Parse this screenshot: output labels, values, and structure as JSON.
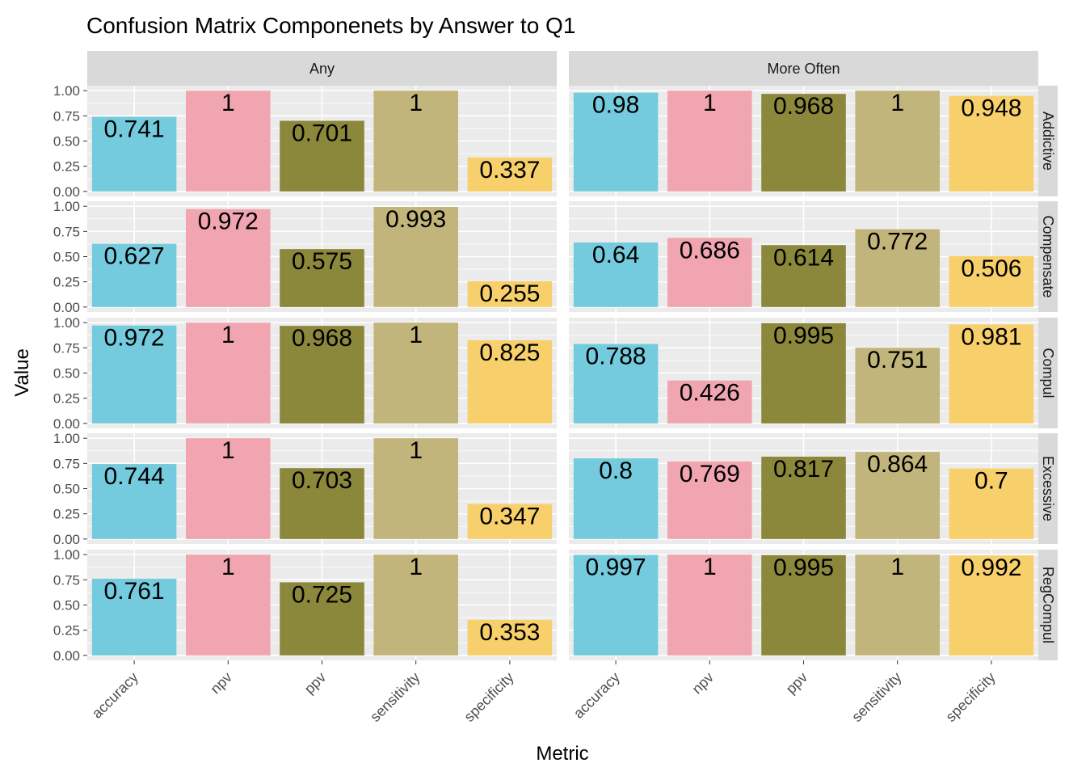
{
  "chart_data": {
    "type": "bar",
    "title": "Confusion Matrix Componenets by Answer to Q1",
    "xlabel": "Metric",
    "ylabel": "Value",
    "ylim": [
      0,
      1
    ],
    "y_ticks": [
      "0.00",
      "0.25",
      "0.50",
      "0.75",
      "1.00"
    ],
    "y_tick_values": [
      0,
      0.25,
      0.5,
      0.75,
      1
    ],
    "categories": [
      "accuracy",
      "npv",
      "ppv",
      "sensitivity",
      "specificity"
    ],
    "category_colors": {
      "accuracy": "#74CBDD",
      "npv": "#F0A5B0",
      "ppv": "#8B873B",
      "sensitivity": "#C2B57B",
      "specificity": "#F7D06B"
    },
    "columns": [
      "Any",
      "More Often"
    ],
    "rows": [
      "Addictive",
      "Compensate",
      "Compul",
      "Excessive",
      "RegCompul"
    ],
    "panels": [
      {
        "row": "Addictive",
        "column": "Any",
        "values": [
          0.741,
          1,
          0.701,
          1,
          0.337
        ],
        "labels": [
          "0.741",
          "1",
          "0.701",
          "1",
          "0.337"
        ]
      },
      {
        "row": "Addictive",
        "column": "More Often",
        "values": [
          0.98,
          1,
          0.968,
          1,
          0.948
        ],
        "labels": [
          "0.98",
          "1",
          "0.968",
          "1",
          "0.948"
        ]
      },
      {
        "row": "Compensate",
        "column": "Any",
        "values": [
          0.627,
          0.972,
          0.575,
          0.993,
          0.255
        ],
        "labels": [
          "0.627",
          "0.972",
          "0.575",
          "0.993",
          "0.255"
        ]
      },
      {
        "row": "Compensate",
        "column": "More Often",
        "values": [
          0.64,
          0.686,
          0.614,
          0.772,
          0.506
        ],
        "labels": [
          "0.64",
          "0.686",
          "0.614",
          "0.772",
          "0.506"
        ]
      },
      {
        "row": "Compul",
        "column": "Any",
        "values": [
          0.972,
          1,
          0.968,
          1,
          0.825
        ],
        "labels": [
          "0.972",
          "1",
          "0.968",
          "1",
          "0.825"
        ]
      },
      {
        "row": "Compul",
        "column": "More Often",
        "values": [
          0.788,
          0.426,
          0.995,
          0.751,
          0.981
        ],
        "labels": [
          "0.788",
          "0.426",
          "0.995",
          "0.751",
          "0.981"
        ]
      },
      {
        "row": "Excessive",
        "column": "Any",
        "values": [
          0.744,
          1,
          0.703,
          1,
          0.347
        ],
        "labels": [
          "0.744",
          "1",
          "0.703",
          "1",
          "0.347"
        ]
      },
      {
        "row": "Excessive",
        "column": "More Often",
        "values": [
          0.8,
          0.769,
          0.817,
          0.864,
          0.7
        ],
        "labels": [
          "0.8",
          "0.769",
          "0.817",
          "0.864",
          "0.7"
        ]
      },
      {
        "row": "RegCompul",
        "column": "Any",
        "values": [
          0.761,
          1,
          0.725,
          1,
          0.353
        ],
        "labels": [
          "0.761",
          "1",
          "0.725",
          "1",
          "0.353"
        ]
      },
      {
        "row": "RegCompul",
        "column": "More Often",
        "values": [
          0.997,
          1,
          0.995,
          1,
          0.992
        ],
        "labels": [
          "0.997",
          "1",
          "0.995",
          "1",
          "0.992"
        ]
      }
    ],
    "grid": true,
    "legend": "none"
  },
  "colors": {
    "panel_background": "#EBEBEB",
    "grid_line": "#FFFFFF",
    "strip_background": "#D9D9D9",
    "text": "#000000",
    "tick_text": "#4D4D4D"
  }
}
